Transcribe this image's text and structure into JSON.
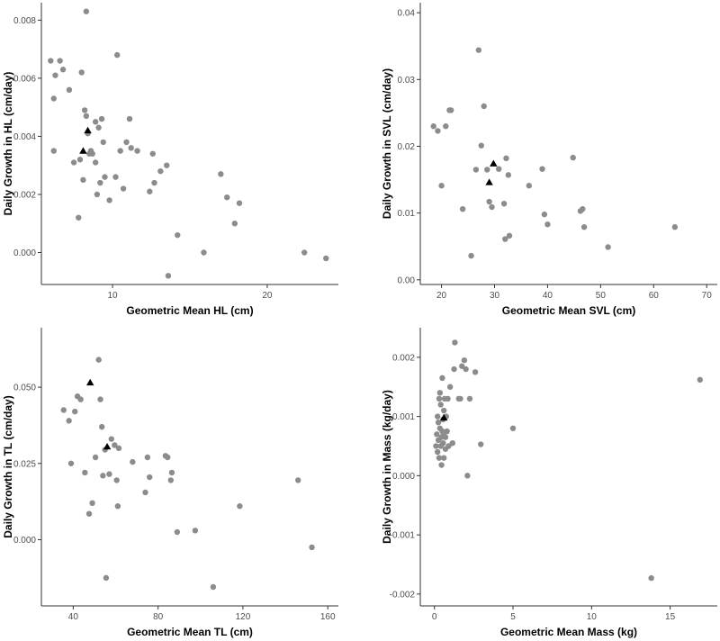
{
  "colors": {
    "point": "#8c8c8c",
    "marker": "#000000",
    "axis": "#333333",
    "tick_text": "#4d4d4d"
  },
  "chart_data": [
    {
      "type": "scatter",
      "title": "",
      "xlabel": "Geometric Mean HL (cm)",
      "ylabel": "Daily Growth in HL (cm/day)",
      "xlim": [
        5.4,
        24.6
      ],
      "ylim": [
        -0.0011,
        0.0086
      ],
      "xticks": [
        10,
        20
      ],
      "xtick_labels": [
        "10",
        "20"
      ],
      "yticks": [
        0.0,
        0.002,
        0.004,
        0.006,
        0.008
      ],
      "ytick_labels": [
        "0.000",
        "0.002",
        "0.004",
        "0.006",
        "0.008"
      ],
      "grid": false,
      "legend": "none",
      "series": [
        {
          "marker": "circle",
          "color": "#8c8c8c",
          "x": [
            6.0,
            6.2,
            6.2,
            6.3,
            6.6,
            6.8,
            7.2,
            7.5,
            7.8,
            7.9,
            8.0,
            8.1,
            8.2,
            8.3,
            8.3,
            8.4,
            8.5,
            8.6,
            8.7,
            8.9,
            8.9,
            9.0,
            9.1,
            9.2,
            9.3,
            9.4,
            9.5,
            9.8,
            10.2,
            10.3,
            10.5,
            10.7,
            10.9,
            11.1,
            11.2,
            11.6,
            12.4,
            12.6,
            12.7,
            13.1,
            13.5,
            13.6,
            14.2,
            15.9,
            17.0,
            17.4,
            17.9,
            18.2,
            22.4,
            23.8
          ],
          "y": [
            0.0066,
            0.0053,
            0.0035,
            0.0061,
            0.0066,
            0.0063,
            0.0056,
            0.0031,
            0.0012,
            0.0032,
            0.0062,
            0.0025,
            0.0049,
            0.0047,
            0.0083,
            0.0041,
            0.0034,
            0.0035,
            0.0034,
            0.0031,
            0.0045,
            0.002,
            0.0043,
            0.0024,
            0.0046,
            0.0038,
            0.0026,
            0.0018,
            0.0026,
            0.0068,
            0.0035,
            0.0022,
            0.0038,
            0.0046,
            0.0036,
            0.0035,
            0.0021,
            0.0034,
            0.0024,
            0.0028,
            0.003,
            -0.0008,
            0.0006,
            0.0,
            0.0027,
            0.0019,
            0.001,
            0.0017,
            0.0,
            -0.0002
          ]
        },
        {
          "marker": "triangle",
          "color": "#000000",
          "x": [
            8.1,
            8.4
          ],
          "y": [
            0.0035,
            0.0042
          ]
        }
      ]
    },
    {
      "type": "scatter",
      "title": "",
      "xlabel": "Geometric Mean SVL (cm)",
      "ylabel": "Daily Growth in SVL (cm/day)",
      "xlim": [
        16,
        72
      ],
      "ylim": [
        -0.0007,
        0.0415
      ],
      "xticks": [
        20,
        30,
        40,
        50,
        60,
        70
      ],
      "xtick_labels": [
        "20",
        "30",
        "40",
        "50",
        "60",
        "70"
      ],
      "yticks": [
        0.0,
        0.01,
        0.02,
        0.03,
        0.04
      ],
      "ytick_labels": [
        "0.00",
        "0.01",
        "0.02",
        "0.03",
        "0.04"
      ],
      "grid": false,
      "legend": "none",
      "series": [
        {
          "marker": "circle",
          "color": "#8c8c8c",
          "x": [
            18.5,
            19.3,
            20.0,
            20.8,
            21.5,
            21.8,
            24.0,
            25.6,
            26.5,
            27.0,
            27.5,
            28.0,
            28.6,
            29.0,
            29.5,
            30.8,
            31.8,
            32.0,
            32.2,
            32.6,
            32.8,
            36.5,
            39.0,
            39.4,
            40.0,
            44.8,
            46.2,
            46.6,
            46.9,
            51.4,
            64.0
          ],
          "y": [
            0.023,
            0.0223,
            0.0141,
            0.023,
            0.0254,
            0.0254,
            0.0106,
            0.0036,
            0.0165,
            0.0344,
            0.0201,
            0.026,
            0.0165,
            0.0117,
            0.0109,
            0.0166,
            0.0114,
            0.0061,
            0.0182,
            0.0157,
            0.0066,
            0.0141,
            0.0166,
            0.0098,
            0.0083,
            0.0183,
            0.0103,
            0.0106,
            0.0079,
            0.0049,
            0.0079
          ]
        },
        {
          "marker": "triangle",
          "color": "#000000",
          "x": [
            29.0,
            29.8
          ],
          "y": [
            0.0146,
            0.0174
          ]
        }
      ]
    },
    {
      "type": "scatter",
      "title": "",
      "xlabel": "Geometric Mean TL (cm)",
      "ylabel": "Daily Growth in TL (cm/day)",
      "xlim": [
        25,
        165
      ],
      "ylim": [
        -0.0217,
        0.0695
      ],
      "xticks": [
        40,
        80,
        120,
        160
      ],
      "xtick_labels": [
        "40",
        "80",
        "120",
        "160"
      ],
      "yticks": [
        0.0,
        0.025,
        0.05
      ],
      "ytick_labels": [
        "0.000",
        "0.025",
        "0.050"
      ],
      "grid": false,
      "legend": "none",
      "series": [
        {
          "marker": "circle",
          "color": "#8c8c8c",
          "x": [
            35.5,
            38.0,
            39.0,
            40.8,
            42.0,
            43.5,
            45.5,
            47.5,
            49.0,
            50.5,
            52.0,
            52.8,
            53.5,
            54.0,
            55.0,
            55.5,
            57.0,
            58.0,
            59.5,
            60.5,
            61.0,
            61.5,
            68.0,
            74.0,
            75.0,
            76.0,
            83.5,
            84.5,
            86.0,
            86.5,
            89.0,
            97.5,
            106.0,
            118.5,
            146.0,
            152.5
          ],
          "y": [
            0.0425,
            0.039,
            0.025,
            0.042,
            0.047,
            0.046,
            0.022,
            0.0085,
            0.012,
            0.027,
            0.059,
            0.046,
            0.037,
            0.021,
            0.0295,
            -0.0125,
            0.0215,
            0.033,
            0.031,
            0.0195,
            0.011,
            0.03,
            0.0255,
            0.0155,
            0.027,
            0.0205,
            0.0275,
            0.027,
            0.0195,
            0.022,
            0.0025,
            0.003,
            -0.0155,
            0.011,
            0.0195,
            -0.0025
          ]
        },
        {
          "marker": "triangle",
          "color": "#000000",
          "x": [
            48.0,
            56.0
          ],
          "y": [
            0.0515,
            0.0305
          ]
        }
      ]
    },
    {
      "type": "scatter",
      "title": "",
      "xlabel": "Geometric Mean Mass (kg)",
      "ylabel": "Daily Growth in Mass (kg/day)",
      "xlim": [
        -0.9,
        18.0
      ],
      "ylim": [
        -0.0022,
        0.0025
      ],
      "xticks": [
        0,
        5,
        10,
        15
      ],
      "xtick_labels": [
        "0",
        "5",
        "10",
        "15"
      ],
      "yticks": [
        -0.002,
        -0.001,
        0.0,
        0.001,
        0.002
      ],
      "ytick_labels": [
        "-0.002",
        "-0.001",
        "0.000",
        "0.001",
        "0.002"
      ],
      "grid": false,
      "legend": "none",
      "series": [
        {
          "marker": "circle",
          "color": "#8c8c8c",
          "x": [
            0.1,
            0.15,
            0.2,
            0.2,
            0.25,
            0.25,
            0.3,
            0.3,
            0.35,
            0.35,
            0.4,
            0.4,
            0.45,
            0.45,
            0.5,
            0.5,
            0.55,
            0.55,
            0.6,
            0.6,
            0.6,
            0.65,
            0.7,
            0.7,
            0.75,
            0.8,
            0.85,
            0.9,
            1.0,
            1.15,
            1.25,
            1.3,
            1.55,
            1.65,
            1.75,
            1.9,
            2.0,
            2.1,
            2.25,
            2.6,
            2.95,
            5.0,
            13.8,
            16.9
          ],
          "y": [
            0.0005,
            0.0007,
            0.0004,
            0.001,
            0.0006,
            0.0009,
            0.0013,
            0.0003,
            0.0008,
            0.0014,
            0.0005,
            0.0012,
            0.00065,
            0.00018,
            0.00165,
            0.00075,
            0.00095,
            0.00055,
            0.0011,
            0.0007,
            0.0003,
            0.0013,
            0.00045,
            0.00065,
            0.001,
            0.00075,
            0.0013,
            0.0005,
            0.0015,
            0.00055,
            0.0018,
            0.00225,
            0.0013,
            0.0013,
            0.00185,
            0.00195,
            0.0018,
            0.0,
            0.0013,
            0.00175,
            0.00053,
            0.0008,
            -0.00173,
            0.00162
          ]
        },
        {
          "marker": "triangle",
          "color": "#000000",
          "x": [
            0.6
          ],
          "y": [
            0.00098
          ]
        }
      ]
    }
  ]
}
